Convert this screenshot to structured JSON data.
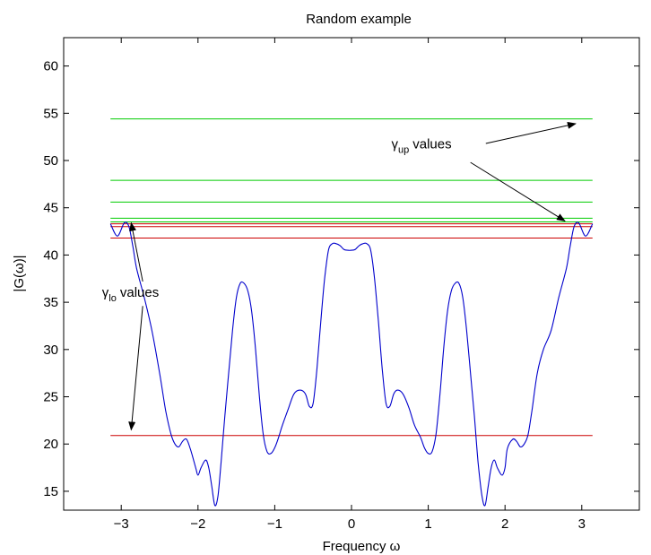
{
  "chart_data": {
    "type": "line",
    "title": "Random example",
    "xlabel": "Frequency ω",
    "ylabel": "|G(ω)|",
    "xlim": [
      -3.75,
      3.75
    ],
    "ylim": [
      13,
      63
    ],
    "xticks": [
      -3,
      -2,
      -1,
      0,
      1,
      2,
      3
    ],
    "xtick_labels": [
      "−3",
      "−2",
      "−1",
      "0",
      "1",
      "2",
      "3"
    ],
    "yticks": [
      15,
      20,
      25,
      30,
      35,
      40,
      45,
      50,
      55,
      60
    ],
    "ytick_labels": [
      "15",
      "20",
      "25",
      "30",
      "35",
      "40",
      "45",
      "50",
      "55",
      "60"
    ],
    "grid": false,
    "colors": {
      "curve": "#0000cc",
      "upper": "#00cc00",
      "lower": "#cc0000",
      "arrow": "#000000"
    },
    "series": [
      {
        "color": "#0000cc",
        "x": [
          -3.14,
          -3.05,
          -2.96,
          -2.9,
          -2.85,
          -2.8,
          -2.7,
          -2.6,
          -2.5,
          -2.42,
          -2.35,
          -2.3,
          -2.25,
          -2.2,
          -2.15,
          -2.1,
          -2.03,
          -2.0,
          -1.96,
          -1.9,
          -1.86,
          -1.82,
          -1.78,
          -1.74,
          -1.7,
          -1.65,
          -1.6,
          -1.55,
          -1.5,
          -1.45,
          -1.4,
          -1.35,
          -1.3,
          -1.25,
          -1.2,
          -1.15,
          -1.1,
          -1.05,
          -1.0,
          -0.95,
          -0.9,
          -0.82,
          -0.75,
          -0.67,
          -0.6,
          -0.55,
          -0.5,
          -0.45,
          -0.4,
          -0.35,
          -0.3,
          -0.25,
          -0.2,
          -0.15,
          -0.1,
          -0.05,
          0.0,
          0.05,
          0.1,
          0.15,
          0.2,
          0.25,
          0.3,
          0.35,
          0.4,
          0.45,
          0.5,
          0.55,
          0.6,
          0.67,
          0.75,
          0.82,
          0.9,
          0.95,
          1.0,
          1.05,
          1.1,
          1.15,
          1.2,
          1.25,
          1.3,
          1.35,
          1.4,
          1.45,
          1.5,
          1.55,
          1.6,
          1.65,
          1.7,
          1.74,
          1.78,
          1.82,
          1.86,
          1.9,
          1.96,
          2.0,
          2.03,
          2.1,
          2.15,
          2.2,
          2.25,
          2.3,
          2.35,
          2.42,
          2.5,
          2.6,
          2.7,
          2.8,
          2.85,
          2.9,
          2.96,
          3.05,
          3.14
        ],
        "y": [
          43.3,
          42.0,
          43.4,
          43.0,
          41.0,
          38.6,
          35.5,
          32.0,
          27.5,
          23.5,
          21.0,
          20.0,
          19.7,
          20.3,
          20.5,
          19.5,
          17.5,
          16.7,
          17.5,
          18.3,
          17.5,
          15.5,
          13.5,
          14.5,
          18.0,
          23.0,
          27.5,
          32.0,
          35.5,
          37.0,
          37.0,
          36.2,
          34.0,
          30.0,
          25.0,
          21.0,
          19.2,
          19.0,
          19.6,
          20.7,
          22.0,
          23.8,
          25.3,
          25.7,
          25.3,
          24.0,
          24.3,
          28.0,
          33.0,
          37.5,
          40.5,
          41.2,
          41.2,
          41.0,
          40.6,
          40.5,
          40.5,
          40.6,
          41.0,
          41.2,
          41.2,
          40.5,
          37.5,
          33.0,
          28.0,
          24.3,
          24.0,
          25.3,
          25.7,
          25.3,
          23.8,
          22.0,
          20.7,
          19.6,
          19.0,
          19.2,
          21.0,
          25.0,
          30.0,
          34.0,
          36.2,
          37.0,
          37.0,
          35.5,
          32.0,
          27.5,
          23.0,
          18.0,
          14.5,
          13.5,
          15.5,
          17.5,
          18.3,
          17.5,
          16.7,
          17.5,
          19.5,
          20.5,
          20.3,
          19.7,
          20.0,
          21.0,
          23.5,
          27.5,
          30.0,
          32.0,
          35.5,
          38.6,
          41.0,
          43.0,
          43.4,
          42.0,
          43.3
        ]
      }
    ],
    "hlines": [
      {
        "y": 54.4,
        "color": "#00cc00",
        "x": [
          -3.14,
          3.14
        ]
      },
      {
        "y": 47.9,
        "color": "#00cc00",
        "x": [
          -3.14,
          3.14
        ]
      },
      {
        "y": 45.6,
        "color": "#00cc00",
        "x": [
          -3.14,
          3.14
        ]
      },
      {
        "y": 43.9,
        "color": "#00cc00",
        "x": [
          -3.14,
          3.14
        ]
      },
      {
        "y": 43.5,
        "color": "#00cc00",
        "x": [
          -3.14,
          3.14
        ]
      },
      {
        "y": 43.3,
        "color": "#cc0000",
        "x": [
          -3.14,
          3.14
        ]
      },
      {
        "y": 43.0,
        "color": "#cc0000",
        "x": [
          -3.14,
          3.14
        ]
      },
      {
        "y": 41.8,
        "color": "#cc0000",
        "x": [
          -3.14,
          3.14
        ]
      },
      {
        "y": 20.9,
        "color": "#cc0000",
        "x": [
          -3.14,
          3.14
        ]
      }
    ],
    "annotations": [
      {
        "text": "values",
        "symbol": "γ",
        "subscript": "up",
        "x": 0.52,
        "y": 51.3,
        "arrows": [
          {
            "from": [
              1.75,
              51.8
            ],
            "to": [
              2.92,
              53.9
            ]
          },
          {
            "from": [
              1.55,
              49.8
            ],
            "to": [
              2.78,
              43.6
            ]
          }
        ]
      },
      {
        "text": "values",
        "symbol": "γ",
        "subscript": "lo",
        "x": -3.25,
        "y": 35.6,
        "arrows": [
          {
            "from": [
              -2.72,
              37.2
            ],
            "to": [
              -2.87,
              43.4
            ]
          },
          {
            "from": [
              -2.72,
              34.6
            ],
            "to": [
              -2.87,
              21.5
            ]
          }
        ]
      }
    ]
  }
}
